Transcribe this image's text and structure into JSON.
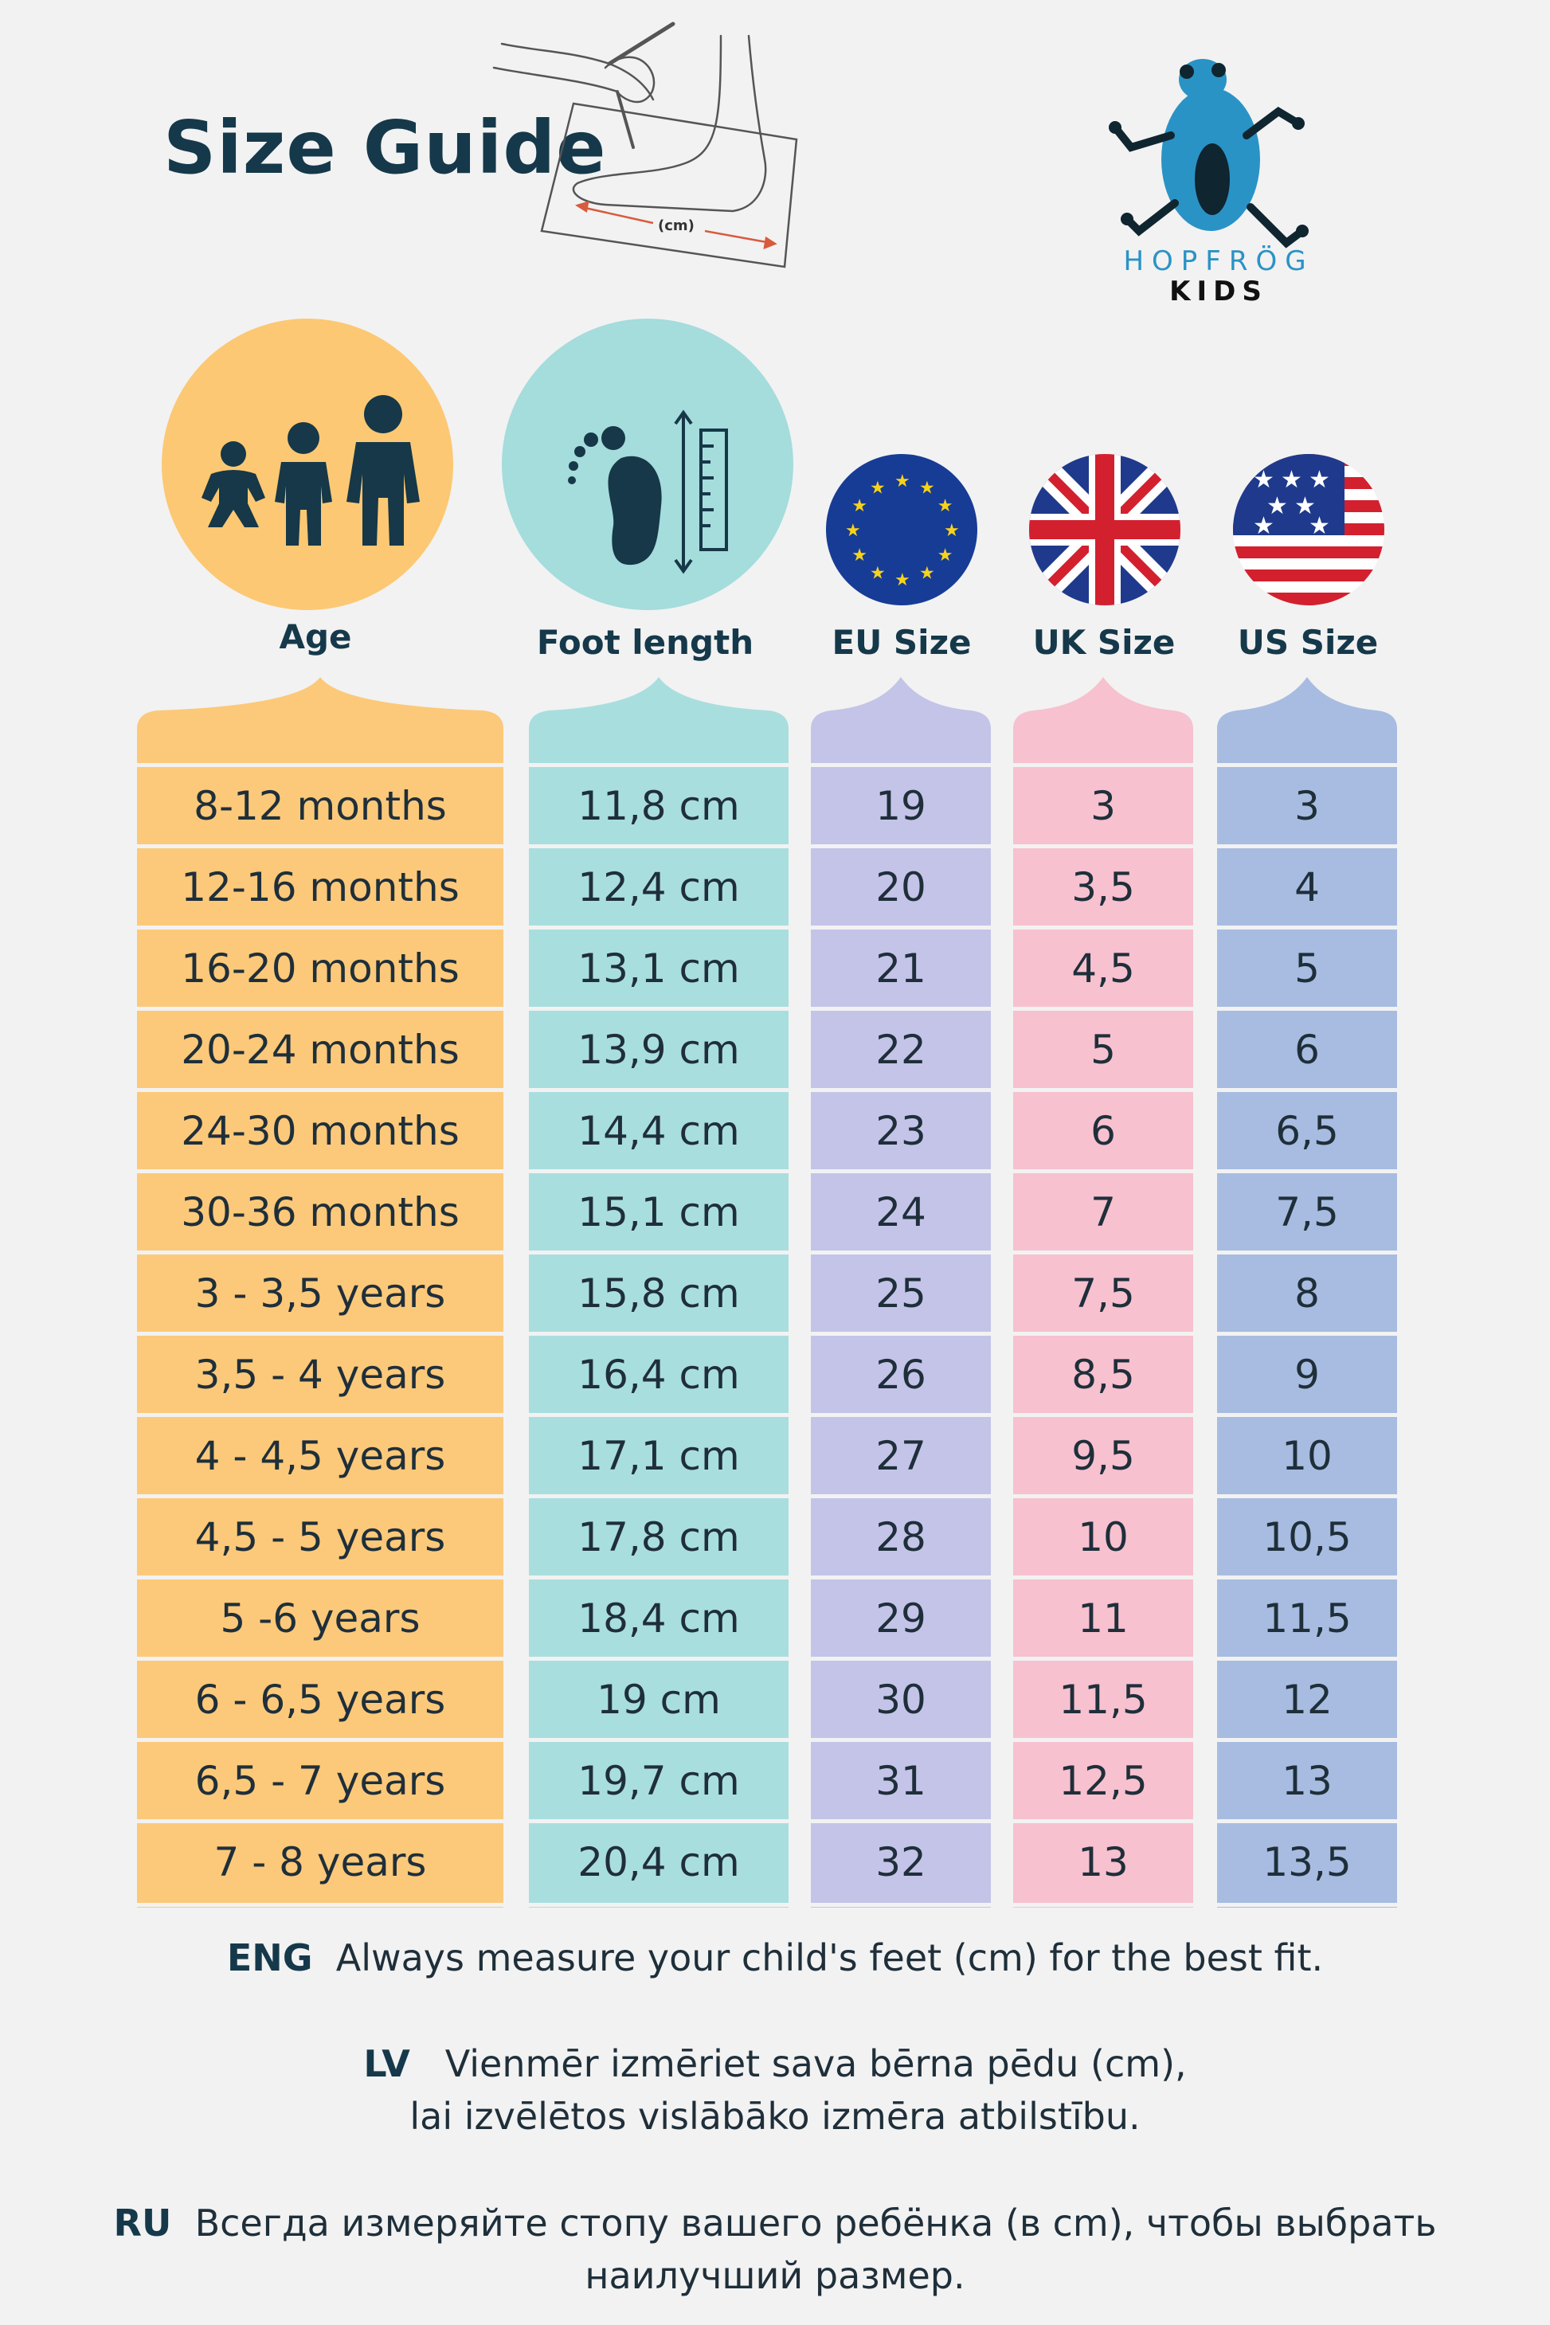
{
  "title": "Size Guide",
  "brand": {
    "line1": "HOPFRÖG",
    "line2": "KIDS"
  },
  "sketch_label": "(cm)",
  "headers": {
    "age": "Age",
    "foot": "Foot length",
    "eu": "EU Size",
    "uk": "UK Size",
    "us": "US Size"
  },
  "colors": {
    "age": "#fcc97a",
    "foot": "#a9dede",
    "eu": "#c4c4e9",
    "uk": "#f7c1cf",
    "us": "#a7bce0",
    "age_circle": "#fcc873",
    "foot_circle": "#a5dcdc",
    "icon_dark": "#163848"
  },
  "rows": [
    {
      "age": "8-12 months",
      "foot": "11,8 cm",
      "eu": "19",
      "uk": "3",
      "us": "3"
    },
    {
      "age": "12-16 months",
      "foot": "12,4 cm",
      "eu": "20",
      "uk": "3,5",
      "us": "4"
    },
    {
      "age": "16-20 months",
      "foot": "13,1 cm",
      "eu": "21",
      "uk": "4,5",
      "us": "5"
    },
    {
      "age": "20-24 months",
      "foot": "13,9 cm",
      "eu": "22",
      "uk": "5",
      "us": "6"
    },
    {
      "age": "24-30 months",
      "foot": "14,4 cm",
      "eu": "23",
      "uk": "6",
      "us": "6,5"
    },
    {
      "age": "30-36 months",
      "foot": "15,1 cm",
      "eu": "24",
      "uk": "7",
      "us": "7,5"
    },
    {
      "age": "3 - 3,5 years",
      "foot": "15,8 cm",
      "eu": "25",
      "uk": "7,5",
      "us": "8"
    },
    {
      "age": "3,5 - 4 years",
      "foot": "16,4 cm",
      "eu": "26",
      "uk": "8,5",
      "us": "9"
    },
    {
      "age": "4 - 4,5 years",
      "foot": "17,1 cm",
      "eu": "27",
      "uk": "9,5",
      "us": "10"
    },
    {
      "age": "4,5 - 5 years",
      "foot": "17,8 cm",
      "eu": "28",
      "uk": "10",
      "us": "10,5"
    },
    {
      "age": "5 -6 years",
      "foot": "18,4 cm",
      "eu": "29",
      "uk": "11",
      "us": "11,5"
    },
    {
      "age": "6 - 6,5 years",
      "foot": "19 cm",
      "eu": "30",
      "uk": "11,5",
      "us": "12"
    },
    {
      "age": "6,5 - 7 years",
      "foot": "19,7 cm",
      "eu": "31",
      "uk": "12,5",
      "us": "13"
    },
    {
      "age": "7 - 8 years",
      "foot": "20,4 cm",
      "eu": "32",
      "uk": "13",
      "us": "13,5"
    }
  ],
  "notes": {
    "eng_tag": "ENG",
    "eng_text": "Always measure your child's feet (cm) for the best fit.",
    "lv_tag": "LV",
    "lv_text1": "Vienmēr izmēriet sava bērna pēdu (cm),",
    "lv_text2": "lai izvēlētos vislābāko izmēra atbilstību.",
    "ru_tag": "RU",
    "ru_text1": "Всегда измеряйте стопу вашего ребёнка (в cm), чтобы выбрать",
    "ru_text2": "наилучший размер."
  }
}
